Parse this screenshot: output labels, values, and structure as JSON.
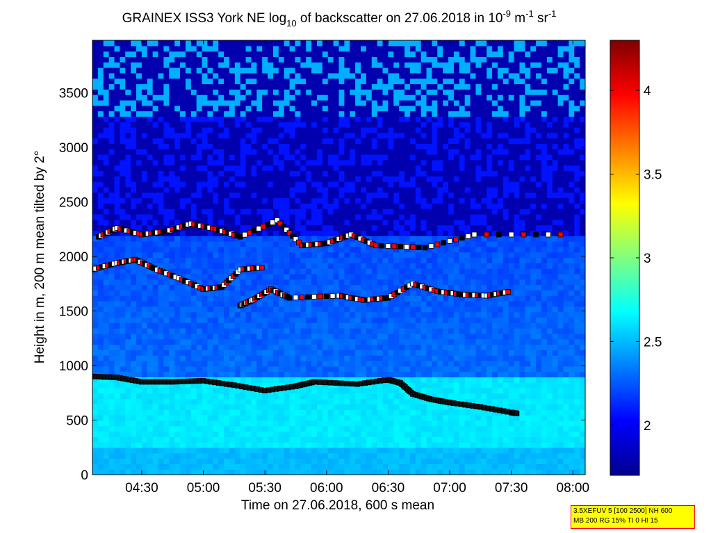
{
  "chart_data": {
    "type": "heatmap",
    "title": {
      "prefix": "GRAINEX ISS3 York NE log",
      "sub": "10",
      "mid": " of backscatter on 27.06.2018 in 10",
      "sup1": "-9",
      "unit1": " m",
      "sup2": "-1",
      "unit2": " sr",
      "sup3": "-1"
    },
    "xlabel": "Time on 27.06.2018, 600 s mean",
    "ylabel": "Height in m, 200 m mean tilted by 2°",
    "x_ticks": [
      "04:30",
      "05:00",
      "05:30",
      "06:00",
      "06:30",
      "07:00",
      "07:30",
      "08:00"
    ],
    "x_tick_hours": [
      4.5,
      5.0,
      5.5,
      6.0,
      6.5,
      7.0,
      7.5,
      8.0
    ],
    "xlim_hours": [
      4.1,
      8.1
    ],
    "y_ticks": [
      0,
      500,
      1000,
      1500,
      2000,
      2500,
      3000,
      3500
    ],
    "ylim": [
      0,
      3980
    ],
    "colorbar": {
      "range": [
        1.7,
        4.3
      ],
      "ticks": [
        2,
        2.5,
        3,
        3.5,
        4
      ],
      "tick_labels": [
        "2",
        "2.5",
        "3",
        "3.5",
        "4"
      ],
      "colormap": "jet"
    },
    "layers": [
      {
        "name": "surface",
        "y_range": [
          0,
          900
        ],
        "level": 2.62
      },
      {
        "name": "boundary",
        "y_range": [
          900,
          2200
        ],
        "level": 2.3
      },
      {
        "name": "free-troposphere",
        "y_range": [
          2200,
          3980
        ],
        "level": 1.82
      }
    ],
    "marker_series": [
      {
        "name": "boundary-layer-top",
        "x": [
          4.1,
          4.3,
          4.5,
          4.75,
          5.0,
          5.25,
          5.5,
          5.75,
          5.9,
          6.25,
          6.5,
          6.6,
          6.7,
          6.85,
          7.0,
          7.25,
          7.5,
          7.55
        ],
        "y": [
          900,
          890,
          850,
          850,
          860,
          820,
          770,
          810,
          850,
          830,
          870,
          840,
          740,
          690,
          660,
          620,
          570,
          560
        ]
      },
      {
        "name": "layer-1600",
        "x": [
          5.3,
          5.4,
          5.55,
          5.7,
          6.1,
          6.3,
          6.5,
          6.7,
          6.9,
          7.1,
          7.3,
          7.5
        ],
        "y": [
          1550,
          1600,
          1700,
          1620,
          1640,
          1600,
          1620,
          1750,
          1680,
          1650,
          1640,
          1680
        ]
      },
      {
        "name": "layer-1900",
        "x": [
          4.1,
          4.3,
          4.45,
          4.6,
          4.8,
          5.0,
          5.15,
          5.3,
          5.5
        ],
        "y": [
          1880,
          1940,
          1970,
          1890,
          1800,
          1700,
          1720,
          1880,
          1900
        ]
      },
      {
        "name": "layer-2200",
        "x": [
          4.15,
          4.3,
          4.5,
          4.7,
          4.9,
          5.1,
          5.3,
          5.6,
          5.8,
          6.0,
          6.2,
          6.4,
          6.8,
          7.2,
          8.0
        ],
        "y": [
          2180,
          2260,
          2200,
          2230,
          2300,
          2250,
          2180,
          2330,
          2100,
          2120,
          2200,
          2100,
          2080,
          2200,
          2200
        ]
      }
    ],
    "legend": "none"
  },
  "info_box": {
    "line1": "3.5XEFUV 5 [100 2500] NH 600",
    "line2": "MB 200 RG 15% TI 0 HI 15"
  }
}
